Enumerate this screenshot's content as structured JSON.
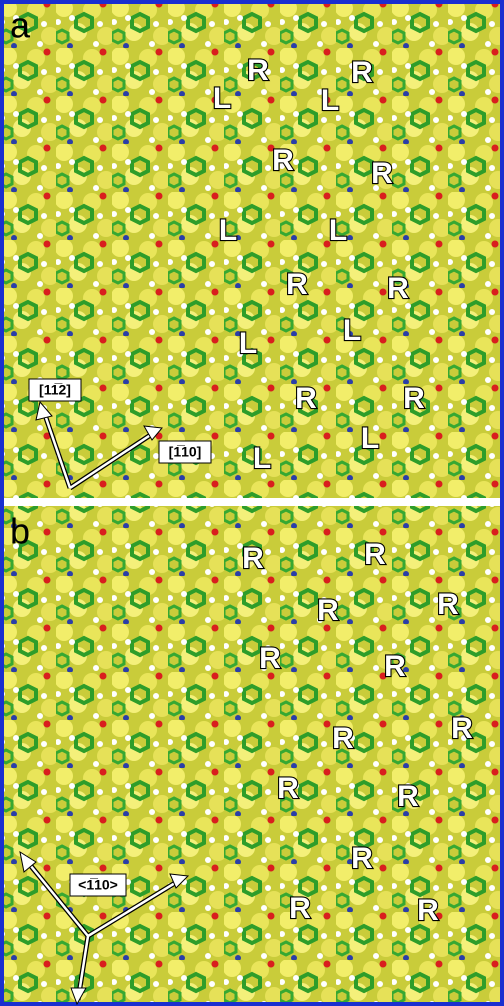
{
  "panels": [
    {
      "label": "a",
      "markers": [
        "R",
        "R",
        "L",
        "L",
        "R",
        "R",
        "L",
        "L",
        "R",
        "R",
        "L",
        "L",
        "R",
        "R",
        "L",
        "L"
      ],
      "directions": [
        "[11̅2]",
        "[1̅10]"
      ]
    },
    {
      "label": "b",
      "markers": [
        "R",
        "R",
        "R",
        "R",
        "R",
        "R",
        "R",
        "R",
        "R",
        "R",
        "R",
        "R",
        "R"
      ],
      "directions": [
        "<1̅10>"
      ]
    }
  ]
}
